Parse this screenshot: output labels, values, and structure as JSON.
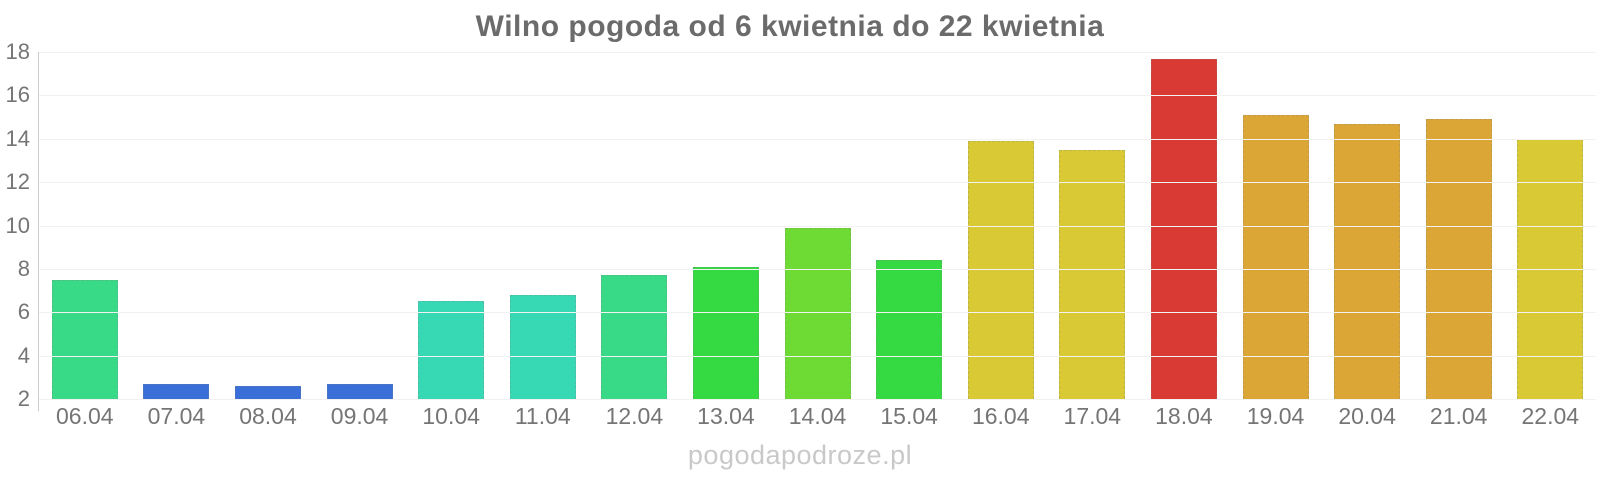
{
  "chart_data": {
    "type": "bar",
    "title": "Wilno pogoda od 6 kwietnia do 22 kwietnia",
    "categories": [
      "06.04",
      "07.04",
      "08.04",
      "09.04",
      "10.04",
      "11.04",
      "12.04",
      "13.04",
      "14.04",
      "15.04",
      "16.04",
      "17.04",
      "18.04",
      "19.04",
      "20.04",
      "21.04",
      "22.04"
    ],
    "values": [
      7.5,
      2.7,
      2.6,
      2.7,
      6.5,
      6.8,
      7.7,
      8.1,
      9.9,
      8.4,
      13.9,
      13.5,
      17.7,
      15.1,
      14.7,
      14.9,
      14.0
    ],
    "bar_colors": [
      "#38d987",
      "#3b6fd8",
      "#3b6fd8",
      "#3b6fd8",
      "#36d9b4",
      "#36d9b4",
      "#38d987",
      "#35d942",
      "#6edb35",
      "#35d942",
      "#d9ca35",
      "#d9ca35",
      "#d93a33",
      "#dba635",
      "#dba635",
      "#dba635",
      "#d9ca35"
    ],
    "xlabel": "",
    "ylabel": "",
    "ylim": [
      2,
      18
    ],
    "yticks": [
      2,
      4,
      6,
      8,
      10,
      12,
      14,
      16,
      18
    ],
    "grid": true,
    "legend": "none",
    "watermark": "pogodapodroze.pl",
    "colors_meta": {
      "title_color": "#6b6b6b",
      "axis_line_color": "#cccccc",
      "gridline_color": "#f2f2f2",
      "tick_label_color": "#757575",
      "watermark_color": "#c9c9c9",
      "background": "#ffffff"
    }
  }
}
